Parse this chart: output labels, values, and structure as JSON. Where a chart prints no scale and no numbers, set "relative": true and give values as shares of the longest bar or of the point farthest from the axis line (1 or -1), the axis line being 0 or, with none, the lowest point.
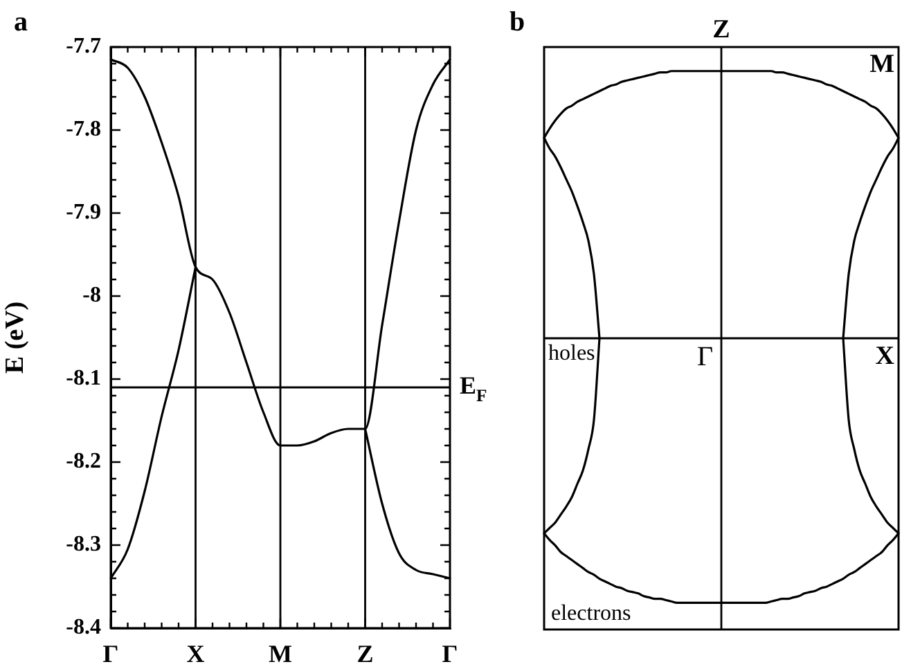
{
  "chart_data": [
    {
      "type": "line",
      "title": "a",
      "ylabel": "E (eV)",
      "line_style": "solid",
      "categories": [
        "Γ",
        null,
        null,
        null,
        null,
        "X",
        null,
        null,
        null,
        null,
        "M",
        null,
        null,
        null,
        null,
        "Z",
        null,
        null,
        null,
        null,
        "Γ"
      ],
      "ylim": [
        -8.4,
        -7.7
      ],
      "yticks": [
        -8.4,
        {
          "value": -8.38,
          "label": null
        },
        {
          "value": -8.36,
          "label": null
        },
        {
          "value": -8.34,
          "label": null
        },
        {
          "value": -8.32,
          "label": null
        },
        -8.3,
        {
          "value": -8.28,
          "label": null
        },
        {
          "value": -8.26,
          "label": null
        },
        {
          "value": -8.24,
          "label": null
        },
        {
          "value": -8.22,
          "label": null
        },
        -8.2,
        {
          "value": -8.18,
          "label": null
        },
        {
          "value": -8.16,
          "label": null
        },
        {
          "value": -8.14,
          "label": null
        },
        {
          "value": -8.12,
          "label": null
        },
        -8.1,
        {
          "value": -8.08,
          "label": null
        },
        {
          "value": -8.06,
          "label": null
        },
        {
          "value": -8.04,
          "label": null
        },
        {
          "value": -8.02,
          "label": null
        },
        -8,
        {
          "value": -7.98,
          "label": null
        },
        {
          "value": -7.96,
          "label": null
        },
        {
          "value": -7.94,
          "label": null
        },
        {
          "value": -7.92,
          "label": null
        },
        -7.9,
        {
          "value": -7.88,
          "label": null
        },
        {
          "value": -7.86,
          "label": null
        },
        {
          "value": -7.84,
          "label": null
        },
        {
          "value": -7.82,
          "label": null
        },
        -7.8,
        {
          "value": -7.78,
          "label": null
        },
        {
          "value": -7.76,
          "label": null
        },
        {
          "value": -7.74,
          "label": null
        },
        {
          "value": -7.72,
          "label": null
        },
        -7.7
      ],
      "ref_lines": [
        {
          "axis": "x",
          "value": "X"
        },
        {
          "axis": "x",
          "value": "M"
        },
        {
          "axis": "x",
          "value": "Z"
        },
        {
          "axis": "y",
          "value": -8.11,
          "label": "E$_{F}$"
        }
      ],
      "series": [
        {
          "color": "#000000",
          "values": [
            -7.715,
            -7.725,
            -7.76,
            -7.815,
            -7.88,
            -7.965,
            -7.98,
            -8.02,
            -8.08,
            -8.14,
            -8.18,
            -8.18,
            -8.175,
            -8.165,
            -8.16,
            -8.16,
            -8.035,
            -7.91,
            -7.8,
            -7.745,
            -7.715
          ]
        },
        {
          "color": "#000000",
          "values": [
            -8.34,
            -8.305,
            -8.235,
            -8.145,
            -8.065,
            -7.965,
            null,
            null,
            null,
            null,
            null,
            null,
            null,
            null,
            null,
            -8.16,
            -8.25,
            -8.31,
            -8.33,
            -8.335,
            -8.34
          ]
        }
      ]
    },
    {
      "type": "line",
      "title": "b",
      "relative": true,
      "line_style": "solid",
      "annotations": [
        "Z",
        "M",
        "Γ",
        "X",
        "holes",
        "electrons"
      ],
      "categories": [
        null,
        null,
        null,
        null,
        null,
        null,
        null,
        null,
        null,
        null,
        null,
        null,
        null,
        null,
        null,
        null,
        null,
        null,
        null,
        null,
        null,
        null,
        null,
        null,
        null,
        null,
        null,
        null,
        null,
        null,
        null,
        null,
        null,
        null,
        null,
        null,
        null,
        null,
        null,
        null,
        null,
        null,
        null,
        null,
        null,
        null,
        null,
        null,
        null,
        null,
        null,
        null,
        null,
        null,
        null,
        null,
        null,
        null,
        null,
        null,
        null,
        null,
        null,
        null,
        null
      ],
      "series": [
        {
          "color": "#000000",
          "values": [
            0.75,
            0.785,
            0.815,
            0.84,
            0.86,
            0.87,
            0.885,
            0.895,
            0.905,
            0.915,
            0.925,
            0.935,
            0.945,
            0.95,
            0.96,
            0.965,
            0.97,
            0.975,
            0.98,
            0.985,
            0.99,
            0.995,
            0.995,
            1,
            1,
            1,
            1,
            1,
            1,
            1,
            1,
            1,
            1,
            1,
            1,
            1,
            1,
            1,
            1,
            1,
            1,
            1,
            0.995,
            0.995,
            0.99,
            0.985,
            0.98,
            0.975,
            0.97,
            0.965,
            0.96,
            0.95,
            0.945,
            0.935,
            0.925,
            0.915,
            0.905,
            0.895,
            0.885,
            0.87,
            0.86,
            0.84,
            0.815,
            0.785,
            0.75
          ]
        },
        {
          "color": "#000000",
          "values": [
            -0.73,
            -0.755,
            -0.775,
            -0.8,
            -0.815,
            -0.83,
            -0.845,
            -0.86,
            -0.875,
            -0.885,
            -0.9,
            -0.91,
            -0.92,
            -0.93,
            -0.935,
            -0.945,
            -0.95,
            -0.955,
            -0.965,
            -0.97,
            -0.975,
            -0.975,
            -0.98,
            -0.985,
            -0.99,
            -0.99,
            -0.99,
            -0.99,
            -0.99,
            -0.99,
            -0.99,
            -0.99,
            -0.99,
            -0.99,
            -0.99,
            -0.99,
            -0.99,
            -0.99,
            -0.99,
            -0.99,
            -0.99,
            -0.985,
            -0.98,
            -0.975,
            -0.975,
            -0.97,
            -0.965,
            -0.955,
            -0.95,
            -0.945,
            -0.935,
            -0.93,
            -0.92,
            -0.91,
            -0.9,
            -0.885,
            -0.875,
            -0.86,
            -0.845,
            -0.83,
            -0.815,
            -0.8,
            -0.775,
            -0.755,
            -0.73
          ]
        },
        {
          "color": "#000000",
          "values": [
            0.75,
            0.71,
            0.68,
            0.64,
            0.595,
            0.55,
            0.495,
            0.435,
            0.365,
            0.24,
            0,
            null,
            null,
            null,
            null,
            null,
            null,
            null,
            null,
            null,
            null,
            null,
            null,
            null,
            null,
            null,
            null,
            null,
            null,
            null,
            null,
            null,
            null,
            null,
            null,
            null,
            null,
            null,
            null,
            null,
            null,
            null,
            null,
            null,
            null,
            null,
            null,
            null,
            null,
            null,
            null,
            null,
            null,
            null,
            0,
            0.24,
            0.365,
            0.435,
            0.495,
            0.55,
            0.595,
            0.64,
            0.68,
            0.71,
            0.75
          ]
        },
        {
          "color": "#000000",
          "values": [
            -0.73,
            -0.71,
            -0.69,
            -0.66,
            -0.63,
            -0.595,
            -0.545,
            -0.495,
            -0.415,
            -0.305,
            0,
            null,
            null,
            null,
            null,
            null,
            null,
            null,
            null,
            null,
            null,
            null,
            null,
            null,
            null,
            null,
            null,
            null,
            null,
            null,
            null,
            null,
            null,
            null,
            null,
            null,
            null,
            null,
            null,
            null,
            null,
            null,
            null,
            null,
            null,
            null,
            null,
            null,
            null,
            null,
            null,
            null,
            null,
            null,
            0,
            -0.305,
            -0.415,
            -0.495,
            -0.545,
            -0.595,
            -0.63,
            -0.66,
            -0.69,
            -0.71,
            -0.73
          ]
        }
      ]
    }
  ]
}
